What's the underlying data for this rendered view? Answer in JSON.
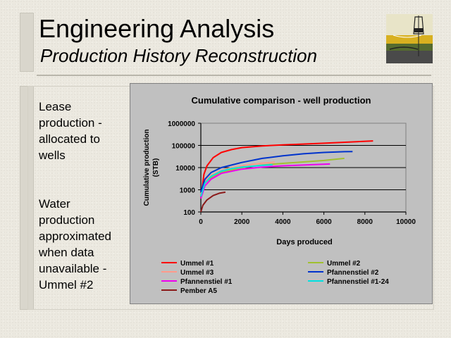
{
  "slide": {
    "title": "Engineering Analysis",
    "subtitle": "Production History Reconstruction",
    "bullets": [
      "Lease production - allocated to wells",
      "Water production approximated when data unavailable - Ummel #2"
    ]
  },
  "chart_data": {
    "type": "line",
    "title": "Cumulative comparison - well production",
    "xlabel": "Days produced",
    "ylabel": "Cumulative production (STB)",
    "xlim": [
      0,
      10000
    ],
    "ylim": [
      100,
      1000000
    ],
    "yscale": "log",
    "x_ticks": [
      0,
      2000,
      4000,
      6000,
      8000,
      10000
    ],
    "y_ticks": [
      100,
      1000,
      10000,
      100000,
      1000000
    ],
    "x_tick_labels": [
      "0",
      "2000",
      "4000",
      "6000",
      "8000",
      "10000"
    ],
    "y_tick_labels": [
      "100",
      "1000",
      "10000",
      "100000",
      "1000000"
    ],
    "grid": "horizontal",
    "legend_position": "bottom",
    "series": [
      {
        "name": "Ummel #1",
        "color": "#ff0000",
        "x": [
          0,
          150,
          300,
          600,
          1000,
          1500,
          2000,
          3000,
          4000,
          6000,
          8400
        ],
        "y": [
          400,
          5000,
          12000,
          28000,
          48000,
          65000,
          80000,
          95000,
          105000,
          125000,
          160000
        ]
      },
      {
        "name": "Ummel #2",
        "color": "#a0c030",
        "x": [
          0,
          200,
          500,
          1000,
          2000,
          3000,
          4000,
          5000,
          6000,
          7000
        ],
        "y": [
          600,
          2000,
          3500,
          6000,
          10000,
          13000,
          15500,
          18000,
          21000,
          26000
        ]
      },
      {
        "name": "Ummel #3",
        "color": "#ff9a8a",
        "x": [
          0,
          200,
          500,
          1000,
          1500,
          2000,
          2500,
          3000,
          3600
        ],
        "y": [
          600,
          2500,
          4500,
          7500,
          10000,
          12000,
          14000,
          16000,
          17500
        ]
      },
      {
        "name": "Pfannenstiel #2",
        "color": "#0033cc",
        "x": [
          0,
          200,
          500,
          1000,
          2000,
          3000,
          4000,
          5000,
          6000,
          7000,
          7400
        ],
        "y": [
          800,
          3000,
          6000,
          10000,
          17000,
          26000,
          34000,
          42000,
          48000,
          52000,
          53000
        ]
      },
      {
        "name": "Pfannenstiel #1",
        "color": "#ee00ee",
        "x": [
          0,
          200,
          500,
          1000,
          2000,
          3000,
          4000,
          5000,
          6300
        ],
        "y": [
          400,
          1500,
          3000,
          5500,
          8500,
          10500,
          12000,
          13000,
          14500
        ]
      },
      {
        "name": "Pfannenstiel #1-24",
        "color": "#00e0e0",
        "x": [
          0,
          200,
          500,
          1000,
          1500,
          2000,
          3000,
          3500
        ],
        "y": [
          500,
          2000,
          4000,
          7000,
          9000,
          10500,
          12500,
          13500
        ]
      },
      {
        "name": "Pember A5",
        "color": "#8b1a1a",
        "x": [
          0,
          100,
          300,
          600,
          900,
          1200
        ],
        "y": [
          100,
          200,
          350,
          550,
          700,
          780
        ]
      }
    ]
  }
}
